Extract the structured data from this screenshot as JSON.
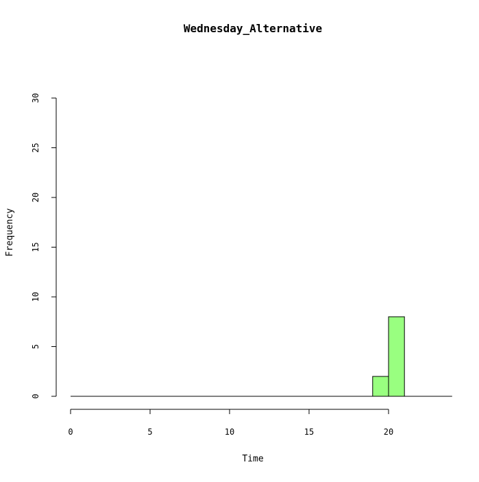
{
  "chart_data": {
    "type": "bar",
    "title": "Wednesday_Alternative",
    "xlabel": "Time",
    "ylabel": "Frequency",
    "xlim": [
      0,
      24
    ],
    "ylim": [
      0,
      30
    ],
    "x_ticks": [
      0,
      5,
      10,
      15,
      20
    ],
    "y_ticks": [
      0,
      5,
      10,
      15,
      20,
      25,
      30
    ],
    "bins": [
      {
        "x0": 19,
        "x1": 20,
        "count": 2
      },
      {
        "x0": 20,
        "x1": 21,
        "count": 8
      }
    ],
    "grid": false,
    "legend": "none",
    "colors": {
      "bar_fill": "#99ff80",
      "bar_stroke": "#000000",
      "axis": "#000000"
    }
  }
}
